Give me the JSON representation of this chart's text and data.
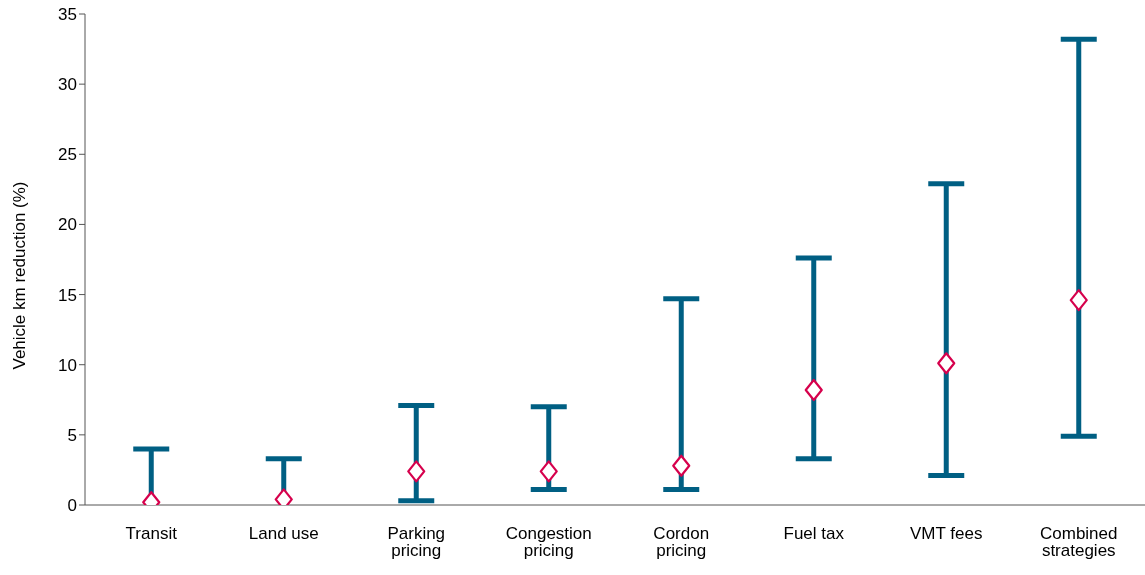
{
  "chart_data": {
    "type": "scatter",
    "ylabel": "Vehicle km reduction (%)",
    "categories": [
      "Transit",
      "Land use",
      "Parking pricing",
      "Congestion pricing",
      "Cordon pricing",
      "Fuel tax",
      "VMT fees",
      "Combined strategies"
    ],
    "series": [
      {
        "color": "#005f83",
        "colors": [
          "#d6004c",
          "#d6004c",
          "#d6004c",
          "#d6004c",
          "#d6004c",
          "#d6004c",
          "#d6004c",
          "#d6004c"
        ],
        "values": [
          0.2,
          0.4,
          2.4,
          2.4,
          2.8,
          8.2,
          10.1,
          14.6
        ],
        "errors": [
          [
            0.2,
            4.0
          ],
          [
            0.4,
            3.3
          ],
          [
            0.3,
            7.1
          ],
          [
            1.1,
            7.0
          ],
          [
            1.1,
            14.7
          ],
          [
            3.3,
            17.6
          ],
          [
            2.1,
            22.9
          ],
          [
            4.9,
            33.2
          ]
        ]
      }
    ],
    "ylim": [
      0,
      35
    ],
    "yticks": [
      0,
      5,
      10,
      15,
      20,
      25,
      30,
      35
    ],
    "marker": "diamond",
    "grid": false,
    "legend": false
  }
}
